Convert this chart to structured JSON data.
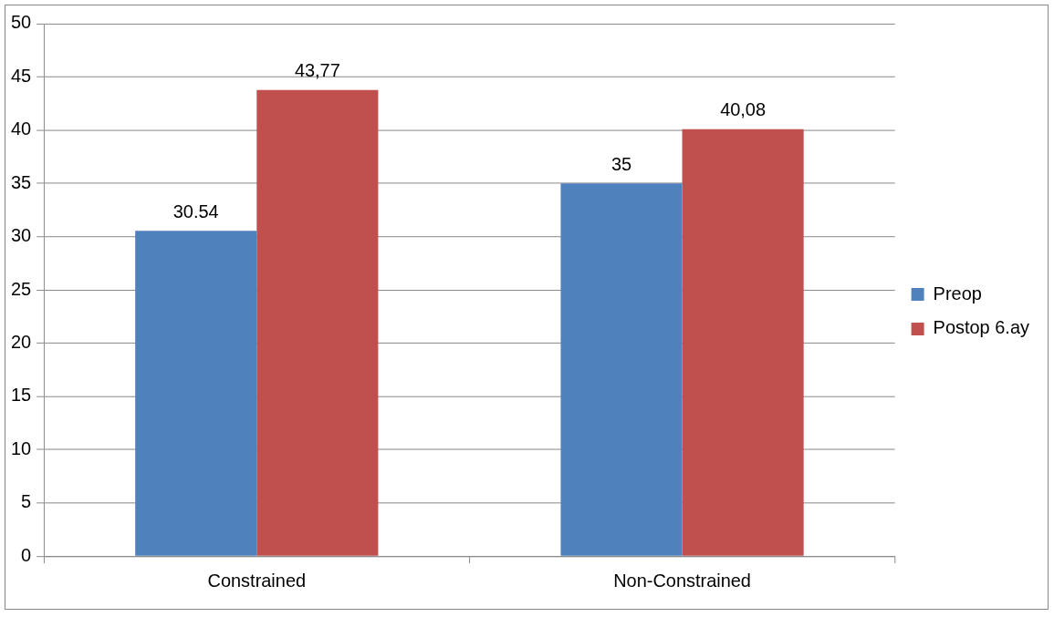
{
  "chart_data": {
    "type": "bar",
    "categories": [
      "Constrained",
      "Non-Constrained"
    ],
    "series": [
      {
        "name": "Preop",
        "color": "#4f81bd",
        "values": [
          30.54,
          35
        ],
        "value_labels": [
          "30.54",
          "35"
        ]
      },
      {
        "name": "Postop 6.ay",
        "color": "#c0504d",
        "values": [
          43.77,
          40.08
        ],
        "value_labels": [
          "43,77",
          "40,08"
        ]
      }
    ],
    "ylim": [
      0,
      50
    ],
    "yticks": [
      0,
      5,
      10,
      15,
      20,
      25,
      30,
      35,
      40,
      45,
      50
    ],
    "grid": "y",
    "legend": "right"
  }
}
